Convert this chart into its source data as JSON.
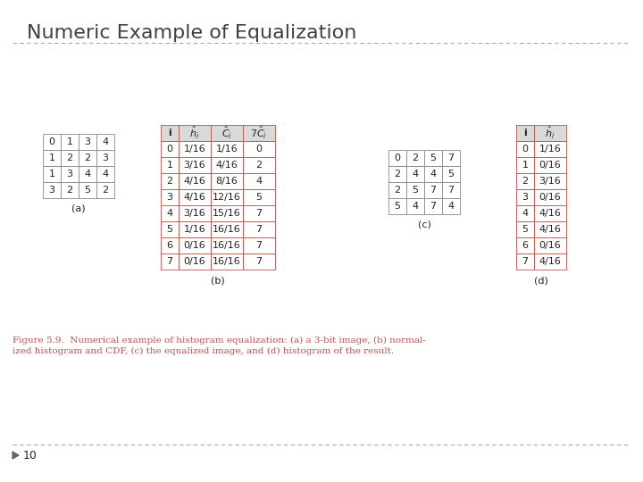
{
  "title": "Numeric Example of Equalization",
  "bg_color": "#ffffff",
  "title_fontsize": 16,
  "table_a_data": [
    [
      "0",
      "1",
      "3",
      "4"
    ],
    [
      "1",
      "2",
      "2",
      "3"
    ],
    [
      "1",
      "3",
      "4",
      "4"
    ],
    [
      "3",
      "2",
      "5",
      "2"
    ]
  ],
  "table_b_data": [
    [
      "0",
      "1/16",
      "1/16",
      "0"
    ],
    [
      "1",
      "3/16",
      "4/16",
      "2"
    ],
    [
      "2",
      "4/16",
      "8/16",
      "4"
    ],
    [
      "3",
      "4/16",
      "12/16",
      "5"
    ],
    [
      "4",
      "3/16",
      "15/16",
      "7"
    ],
    [
      "5",
      "1/16",
      "16/16",
      "7"
    ],
    [
      "6",
      "0/16",
      "16/16",
      "7"
    ],
    [
      "7",
      "0/16",
      "16/16",
      "7"
    ]
  ],
  "table_c_data": [
    [
      "0",
      "2",
      "5",
      "7"
    ],
    [
      "2",
      "4",
      "4",
      "5"
    ],
    [
      "2",
      "5",
      "7",
      "7"
    ],
    [
      "5",
      "4",
      "7",
      "4"
    ]
  ],
  "table_d_data": [
    [
      "0",
      "1/16"
    ],
    [
      "1",
      "0/16"
    ],
    [
      "2",
      "3/16"
    ],
    [
      "3",
      "0/16"
    ],
    [
      "4",
      "4/16"
    ],
    [
      "5",
      "4/16"
    ],
    [
      "6",
      "0/16"
    ],
    [
      "7",
      "4/16"
    ]
  ],
  "caption_line1": "Figure 5.9.  Numerical example of histogram equalization: (a) a 3-bit image, (b) normal-",
  "caption_line2": "ized histogram and CDF, (c) the equalized image, and (d) histogram of the result.",
  "label_a": "(a)",
  "label_b": "(b)",
  "label_c": "(c)",
  "label_d": "(d)",
  "slide_number": "10",
  "header_bg": "#d9d9d9",
  "header_text": "#222222",
  "border_color": "#c0504d",
  "cell_border": "#c0504d",
  "plain_border": "#888888",
  "caption_color": "#c0504d",
  "title_color": "#404040",
  "dash_color": "#aaaaaa",
  "text_color": "#222222"
}
